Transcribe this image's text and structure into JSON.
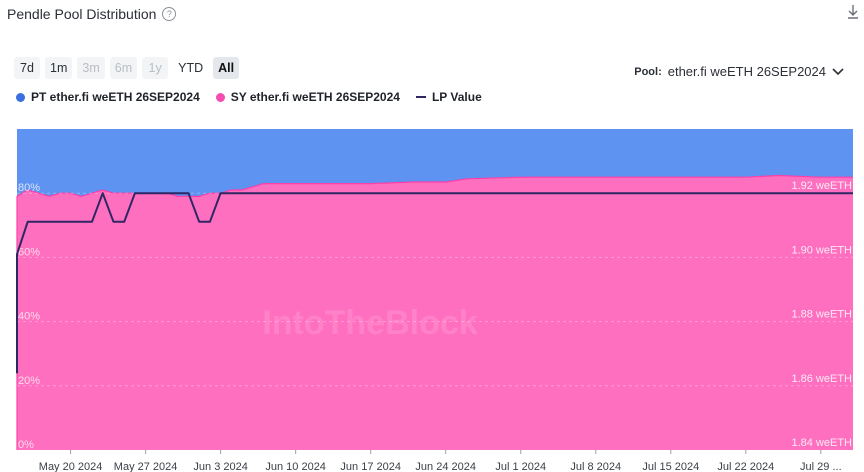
{
  "header": {
    "title": "Pendle Pool Distribution",
    "help_icon": "question-circle-icon",
    "download_icon": "download-icon"
  },
  "range_buttons": [
    {
      "label": "7d",
      "state": "enabled"
    },
    {
      "label": "1m",
      "state": "enabled"
    },
    {
      "label": "3m",
      "state": "disabled"
    },
    {
      "label": "6m",
      "state": "disabled"
    },
    {
      "label": "1y",
      "state": "disabled"
    },
    {
      "label": "YTD",
      "state": "plain"
    },
    {
      "label": "All",
      "state": "active"
    }
  ],
  "pool": {
    "label": "Pool:",
    "value": "ether.fi weETH 26SEP2024",
    "icon": "chevron-down-icon"
  },
  "colors": {
    "pt": "#5f93f2",
    "sy": "#ff6fbf",
    "sy_line": "#ff3fa8",
    "lp": "#2d2764"
  },
  "chart_data": {
    "type": "area",
    "legend_position": "top-left",
    "series": [
      {
        "name": "PT ether.fi weETH 26SEP2024",
        "role": "stacked-top-remainder"
      },
      {
        "name": "SY ether.fi weETH 26SEP2024",
        "role": "stacked-bottom-percent",
        "x": [
          "May 15 2024",
          "May 15 2024",
          "May 16 2024",
          "May 17 2024",
          "May 18 2024",
          "May 19 2024",
          "May 20 2024",
          "May 21 2024",
          "May 22 2024",
          "May 23 2024",
          "May 24 2024",
          "May 25 2024",
          "May 26 2024",
          "May 27 2024",
          "May 28 2024",
          "May 29 2024",
          "May 30 2024",
          "May 31 2024",
          "Jun 1 2024",
          "Jun 2 2024",
          "Jun 3 2024",
          "Jun 4 2024",
          "Jun 5 2024",
          "Jun 6 2024",
          "Jun 7 2024",
          "Jun 10 2024",
          "Jun 14 2024",
          "Jun 17 2024",
          "Jun 21 2024",
          "Jun 24 2024",
          "Jun 26 2024",
          "Jul 1 2024",
          "Jul 8 2024",
          "Jul 15 2024",
          "Jul 18 2024",
          "Jul 22 2024",
          "Jul 25 2024",
          "Jul 29 2024",
          "Aug 1 2024"
        ],
        "values": [
          0,
          79,
          81,
          80,
          79,
          80,
          80,
          79,
          80,
          81,
          80,
          80,
          80,
          80,
          80,
          80,
          79,
          79,
          79,
          80,
          80,
          81,
          81,
          82,
          83,
          83,
          83,
          83,
          83.5,
          83.5,
          84.5,
          85,
          85,
          85,
          85,
          85,
          85.5,
          85,
          85
        ]
      },
      {
        "name": "LP Value",
        "axis": "right",
        "x": [
          "May 15 2024",
          "May 15 2024",
          "May 16 2024",
          "May 18 2024",
          "May 22 2024",
          "May 23 2024",
          "May 24 2024",
          "May 25 2024",
          "May 26 2024",
          "May 28 2024",
          "May 31 2024",
          "Jun 1 2024",
          "Jun 2 2024",
          "Jun 3 2024",
          "Aug 1 2024"
        ],
        "values": [
          1.8614,
          1.8985,
          1.9086,
          1.9086,
          1.9086,
          1.9175,
          1.9086,
          1.9086,
          1.9175,
          1.9175,
          1.9175,
          1.9086,
          1.9086,
          1.9175,
          1.9175
        ]
      }
    ],
    "left_axis": {
      "ticks": [
        "0%",
        "20%",
        "40%",
        "60%",
        "80%"
      ],
      "range": [
        0,
        100
      ]
    },
    "right_axis": {
      "unit": "weETH",
      "ticks": [
        "1.84 weETH",
        "1.86 weETH",
        "1.88 weETH",
        "1.90 weETH",
        "1.92 weETH"
      ],
      "range": [
        1.8375,
        1.9375
      ]
    },
    "x_axis": {
      "range": [
        "May 15 2024",
        "Aug 1 2024"
      ],
      "ticks": [
        {
          "label": "May 20 2024",
          "date": "May 20 2024"
        },
        {
          "label": "May 27 2024",
          "date": "May 27 2024"
        },
        {
          "label": "Jun 3 2024",
          "date": "Jun 3 2024"
        },
        {
          "label": "Jun 10 2024",
          "date": "Jun 10 2024"
        },
        {
          "label": "Jun 17 2024",
          "date": "Jun 17 2024"
        },
        {
          "label": "Jun 24 2024",
          "date": "Jun 24 2024"
        },
        {
          "label": "Jul 1 2024",
          "date": "Jul 1 2024"
        },
        {
          "label": "Jul 8 2024",
          "date": "Jul 8 2024"
        },
        {
          "label": "Jul 15 2024",
          "date": "Jul 15 2024"
        },
        {
          "label": "Jul 22 2024",
          "date": "Jul 22 2024"
        },
        {
          "label": "Jul 29 ...",
          "date": "Jul 29 2024"
        }
      ]
    },
    "grid": true,
    "watermark": "IntoTheBlock"
  }
}
